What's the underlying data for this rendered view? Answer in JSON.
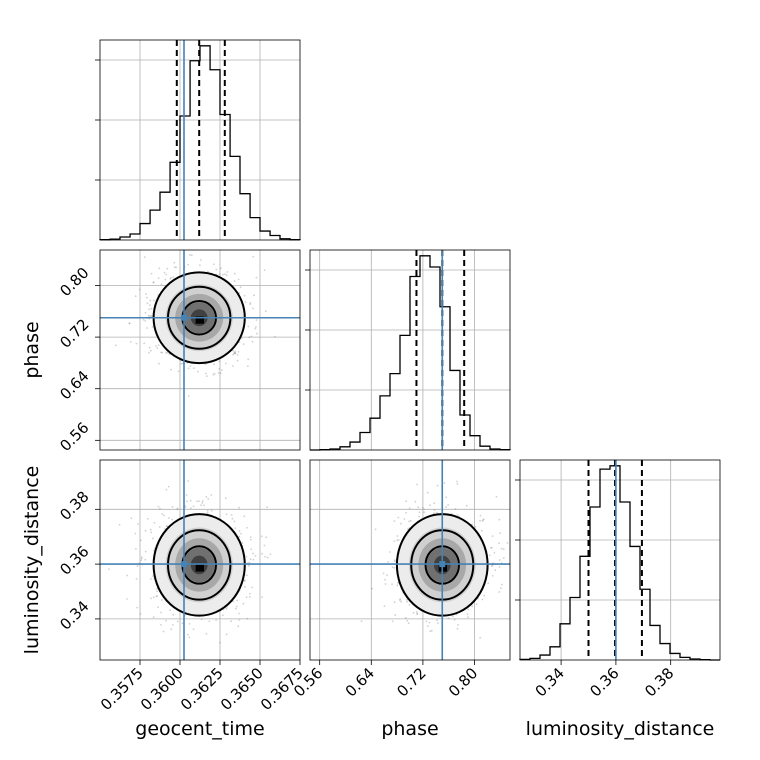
{
  "chart_data": {
    "type": "corner",
    "parameters": [
      "geocent_time",
      "phase",
      "luminosity_distance"
    ],
    "ranges": {
      "geocent_time": [
        0.355,
        0.3675
      ],
      "phase": [
        0.545,
        0.855
      ],
      "luminosity_distance": [
        0.325,
        0.398
      ]
    },
    "ticks": {
      "geocent_time": [
        "0.3575",
        "0.3600",
        "0.3625",
        "0.3650",
        "0.3675"
      ],
      "phase": [
        "0.56",
        "0.64",
        "0.72",
        "0.80"
      ],
      "luminosity_distance": [
        "0.34",
        "0.36",
        "0.38"
      ]
    },
    "truths": {
      "geocent_time": 0.36025,
      "phase": 0.75,
      "luminosity_distance": 0.36
    },
    "quantiles": {
      "geocent_time": [
        0.3598,
        0.3612,
        0.3628
      ],
      "phase": [
        0.71,
        0.75,
        0.784
      ],
      "luminosity_distance": [
        0.35,
        0.3597,
        0.3695
      ]
    },
    "histograms": {
      "geocent_time": {
        "bin_edges": [
          0.355,
          0.35563,
          0.35625,
          0.35688,
          0.3575,
          0.35813,
          0.35875,
          0.35938,
          0.36,
          0.36063,
          0.36125,
          0.36188,
          0.3625,
          0.36313,
          0.36375,
          0.36438,
          0.365,
          0.36563,
          0.36625,
          0.36688,
          0.3675
        ],
        "counts": [
          1,
          3,
          10,
          20,
          55,
          100,
          160,
          260,
          415,
          600,
          650,
          570,
          420,
          280,
          155,
          75,
          30,
          15,
          4,
          1
        ]
      },
      "phase": {
        "bin_edges": [
          0.545,
          0.5605,
          0.576,
          0.5915,
          0.607,
          0.6225,
          0.638,
          0.6535,
          0.669,
          0.6845,
          0.7,
          0.7155,
          0.731,
          0.7465,
          0.762,
          0.7775,
          0.793,
          0.8085,
          0.824,
          0.8395,
          0.855
        ],
        "counts": [
          0,
          1,
          3,
          10,
          25,
          55,
          100,
          170,
          240,
          360,
          545,
          610,
          575,
          450,
          250,
          110,
          45,
          12,
          3,
          1
        ]
      },
      "luminosity_distance": {
        "bin_edges": [
          0.325,
          0.32865,
          0.3323,
          0.33595,
          0.3396,
          0.34325,
          0.3469,
          0.35055,
          0.3542,
          0.35785,
          0.3615,
          0.36515,
          0.3688,
          0.37245,
          0.3761,
          0.37975,
          0.3834,
          0.38705,
          0.3907,
          0.39435,
          0.398
        ],
        "counts": [
          2,
          5,
          15,
          40,
          110,
          190,
          315,
          465,
          580,
          590,
          480,
          345,
          215,
          105,
          50,
          20,
          8,
          3,
          1,
          0
        ]
      }
    },
    "contour_levels": [
      "39.3%",
      "86.5%",
      "98.9%"
    ],
    "grid": true
  },
  "xlabels": [
    "geocent_time",
    "phase",
    "luminosity_distance"
  ],
  "ylabels": [
    "phase",
    "luminosity_distance"
  ],
  "colors": {
    "truth": "#4682b4",
    "data": "#000000"
  }
}
